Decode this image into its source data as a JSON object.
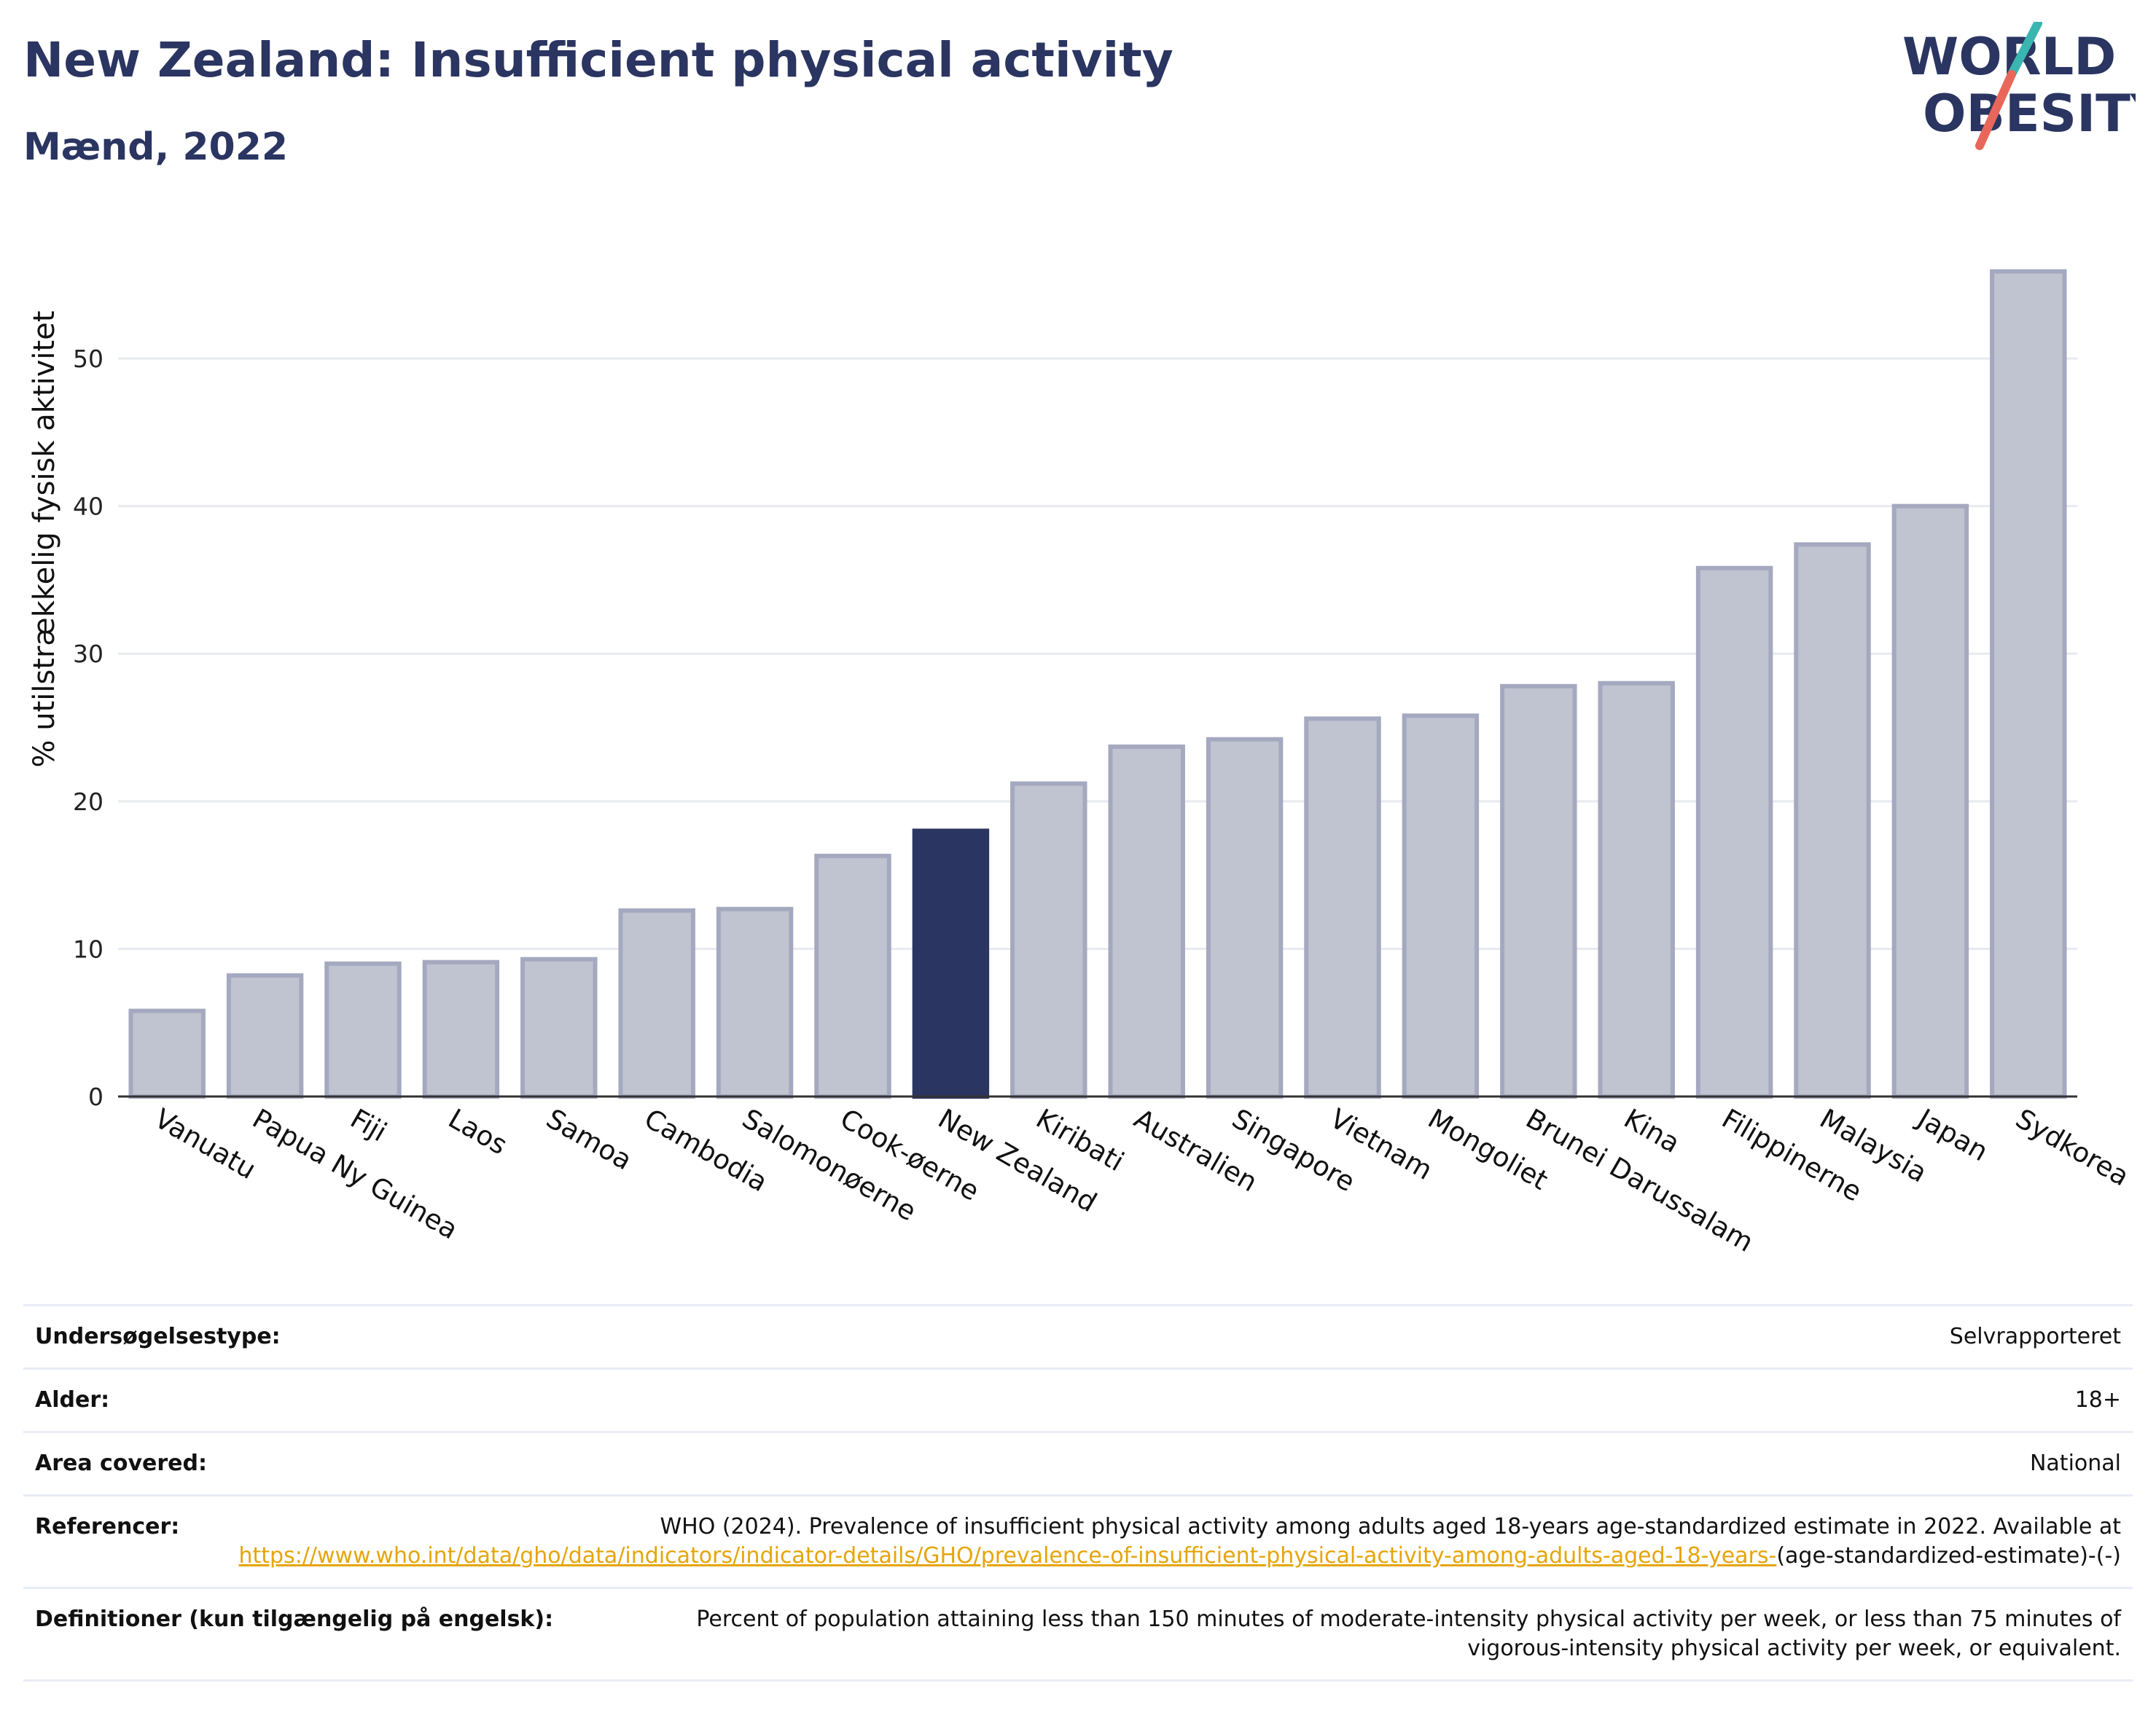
{
  "header": {
    "title": "New Zealand: Insufficient physical activity",
    "subtitle": "Mænd, 2022"
  },
  "logo": {
    "line1": "WORLD",
    "line2": "OBESITY"
  },
  "colors": {
    "highlight_bar": "#2b3561",
    "other_bar_fill": "#c0c3d0",
    "other_bar_border": "#a4a9bf",
    "title": "#2b3561",
    "link": "#e5a50a",
    "logo_teal": "#3ab5b0",
    "logo_red": "#e8675a"
  },
  "chart_data": {
    "type": "bar",
    "ylabel": "% utilstrækkelig fysisk aktivitet",
    "ylim": [
      0,
      58
    ],
    "yticks": [
      0,
      10,
      20,
      30,
      40,
      50
    ],
    "grid": true,
    "highlight": "New Zealand",
    "categories": [
      "Vanuatu",
      "Papua Ny Guinea",
      "Fiji",
      "Laos",
      "Samoa",
      "Cambodia",
      "Salomonøerne",
      "Cook-øerne",
      "New Zealand",
      "Kiribati",
      "Australien",
      "Singapore",
      "Vietnam",
      "Mongoliet",
      "Brunei Darussalam",
      "Kina",
      "Filippinerne",
      "Malaysia",
      "Japan",
      "Sydkorea"
    ],
    "values": [
      5.8,
      8.2,
      9.0,
      9.1,
      9.3,
      12.6,
      12.7,
      16.3,
      18.0,
      21.2,
      23.7,
      24.2,
      25.6,
      25.8,
      27.8,
      28.0,
      35.8,
      37.4,
      40.0,
      55.9
    ]
  },
  "meta": {
    "survey_type_label": "Undersøgelsestype:",
    "survey_type_value": "Selvrapporteret",
    "age_label": "Alder:",
    "age_value": "18+",
    "area_label": "Area covered:",
    "area_value": "National",
    "references_label": "Referencer:",
    "references_text": "WHO (2024). Prevalence of insufficient physical activity among adults aged 18-years age-standardized estimate in 2022. Available at",
    "references_link": "https://www.who.int/data/gho/data/indicators/indicator-details/GHO/prevalence-of-insufficient-physical-activity-among-adults-aged-18-years-",
    "references_suffix": "(age-standardized-estimate)-(-)",
    "definitions_label": "Definitioner (kun tilgængelig på engelsk):",
    "definitions_value": "Percent of population attaining less than 150 minutes of moderate-intensity physical activity per week, or less than 75 minutes of vigorous-intensity physical activity per week, or equivalent."
  }
}
